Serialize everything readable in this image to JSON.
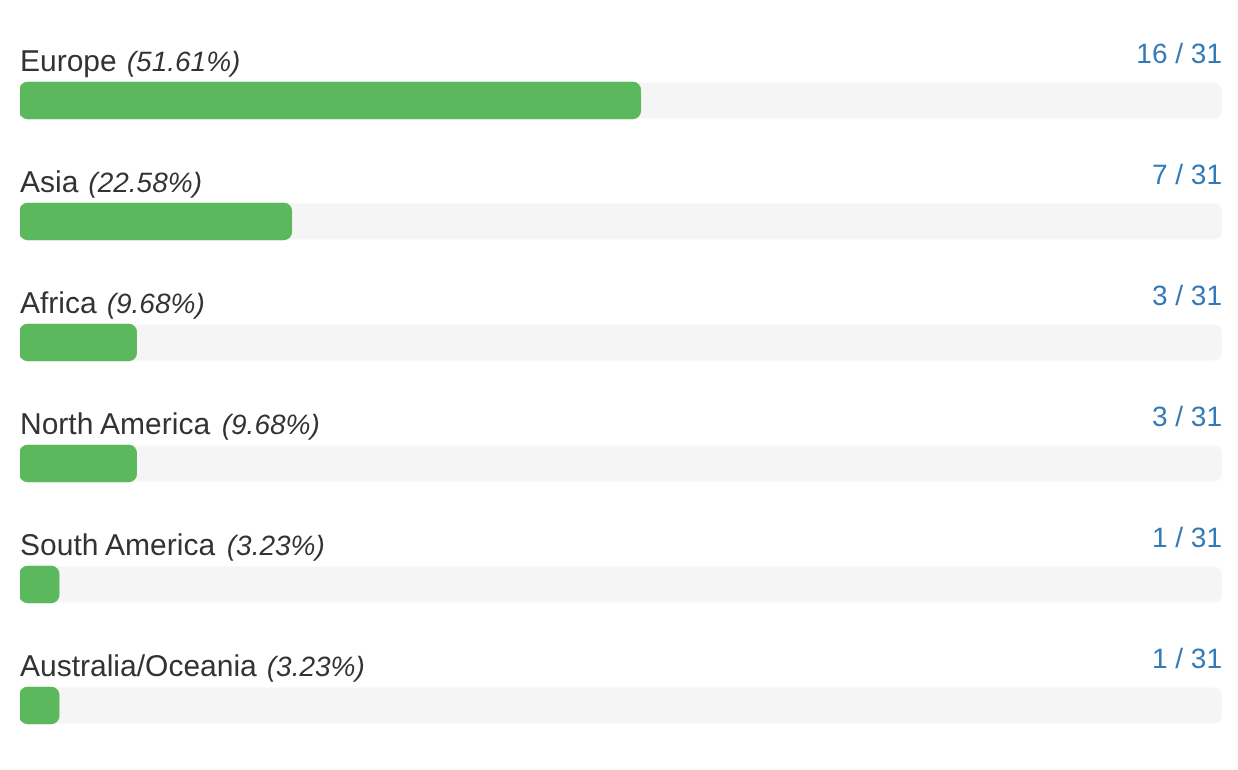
{
  "chart_data": {
    "type": "bar",
    "orientation": "horizontal",
    "categories": [
      "Europe",
      "Asia",
      "Africa",
      "North America",
      "South America",
      "Australia/Oceania"
    ],
    "values": [
      16,
      7,
      3,
      3,
      1,
      1
    ],
    "value_labels": [
      "16 / 31",
      "7 / 31",
      "3 / 31",
      "3 / 31",
      "1 / 31",
      "1 / 31"
    ],
    "color": "#5cb85c",
    "xlim": [
      0,
      31
    ],
    "tick_labels": false,
    "annotations": [
      "(51.61%)",
      "(22.58%)",
      "(9.68%)",
      "(9.68%)",
      "(3.23%)",
      "(3.23%)"
    ]
  }
}
